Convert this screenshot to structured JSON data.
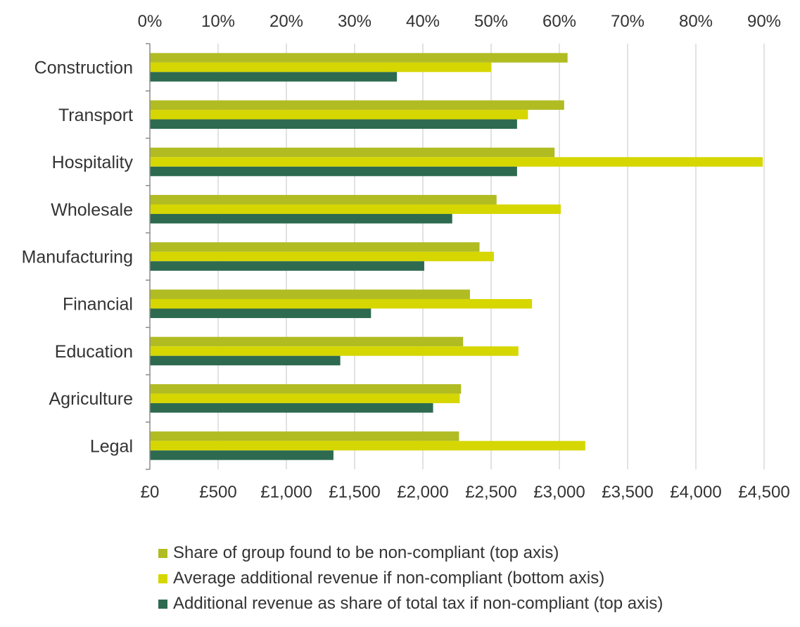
{
  "chart_data": {
    "type": "bar",
    "orientation": "horizontal",
    "categories": [
      "Construction",
      "Transport",
      "Hospitality",
      "Wholesale",
      "Manufacturing",
      "Financial",
      "Education",
      "Agriculture",
      "Legal"
    ],
    "top_axis": {
      "range": [
        0,
        90
      ],
      "tick_labels": [
        "0%",
        "10%",
        "20%",
        "30%",
        "40%",
        "50%",
        "60%",
        "70%",
        "80%",
        "90%"
      ]
    },
    "bottom_axis": {
      "range": [
        0,
        4500
      ],
      "tick_labels": [
        "£0",
        "£500",
        "£1,000",
        "£1,500",
        "£2,000",
        "£2,500",
        "£3,000",
        "£3,500",
        "£4,000",
        "£4,500"
      ]
    },
    "series": [
      {
        "name": "Share of group found to be non-compliant (top axis)",
        "axis": "top",
        "color": "#b1bc22",
        "values": [
          61.2,
          60.7,
          59.3,
          50.8,
          48.3,
          46.9,
          45.9,
          45.6,
          45.3
        ]
      },
      {
        "name": "Average additional revenue if non-compliant (bottom axis)",
        "axis": "bottom",
        "color": "#d6d600",
        "values": [
          2500,
          2770,
          4490,
          3010,
          2520,
          2800,
          2700,
          2270,
          3190
        ]
      },
      {
        "name": "Additional revenue as share of total tax if non-compliant (top axis)",
        "axis": "top",
        "color": "#2d6a4f",
        "values": [
          36.2,
          53.8,
          53.8,
          44.3,
          40.2,
          32.4,
          27.9,
          41.5,
          26.9
        ]
      }
    ],
    "grid": true,
    "legend": "bottom"
  }
}
